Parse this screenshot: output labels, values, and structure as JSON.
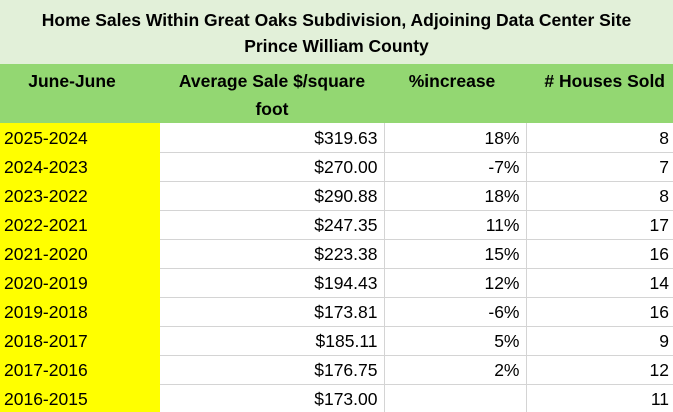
{
  "title": {
    "line1": "Home Sales Within Great Oaks Subdivision, Adjoining Data Center Site",
    "line2": "Prince William County"
  },
  "headers": {
    "period": "June-June",
    "price": "Average Sale $/square foot",
    "increase": "%increase",
    "sold": "# Houses Sold"
  },
  "rows": [
    {
      "period": "2025-2024",
      "price": "$319.63",
      "increase": "18%",
      "sold": "8"
    },
    {
      "period": "2024-2023",
      "price": "$270.00",
      "increase": "-7%",
      "sold": "7"
    },
    {
      "period": "2023-2022",
      "price": "$290.88",
      "increase": "18%",
      "sold": "8"
    },
    {
      "period": "2022-2021",
      "price": "$247.35",
      "increase": "11%",
      "sold": "17"
    },
    {
      "period": "2021-2020",
      "price": "$223.38",
      "increase": "15%",
      "sold": "16"
    },
    {
      "period": "2020-2019",
      "price": "$194.43",
      "increase": "12%",
      "sold": "14"
    },
    {
      "period": "2019-2018",
      "price": "$173.81",
      "increase": "-6%",
      "sold": "16"
    },
    {
      "period": "2018-2017",
      "price": "$185.11",
      "increase": "5%",
      "sold": "9"
    },
    {
      "period": "2017-2016",
      "price": "$176.75",
      "increase": "2%",
      "sold": "12"
    },
    {
      "period": "2016-2015",
      "price": "$173.00",
      "increase": "",
      "sold": "11"
    }
  ],
  "colors": {
    "title_background": "#e2f0d9",
    "header_background": "#93d772",
    "period_highlight": "#ffff00",
    "gridline": "#d4d4d4"
  }
}
